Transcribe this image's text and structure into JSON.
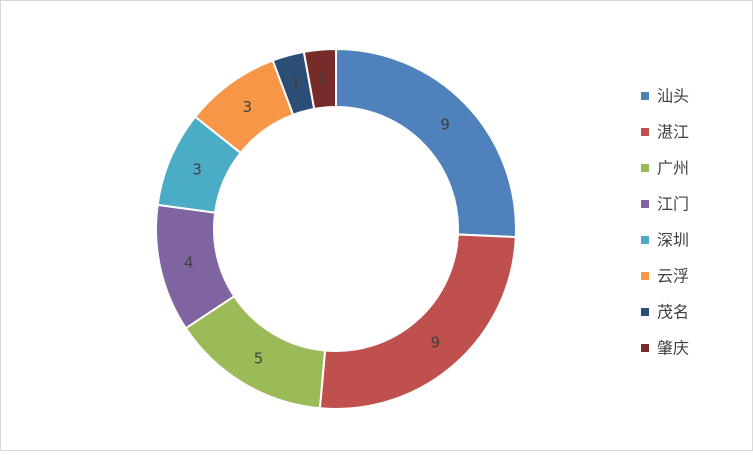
{
  "chart_data": {
    "type": "doughnut",
    "title": "",
    "categories": [
      "汕头",
      "湛江",
      "广州",
      "江门",
      "深圳",
      "云浮",
      "茂名",
      "肇庆"
    ],
    "values": [
      9,
      9,
      5,
      4,
      3,
      3,
      1,
      1
    ],
    "colors": [
      "#4F81BD",
      "#C0504D",
      "#9BBB59",
      "#8064A2",
      "#4BACC6",
      "#F79646",
      "#2C4D75",
      "#772C2A"
    ],
    "data_labels": true,
    "legend": "right"
  }
}
